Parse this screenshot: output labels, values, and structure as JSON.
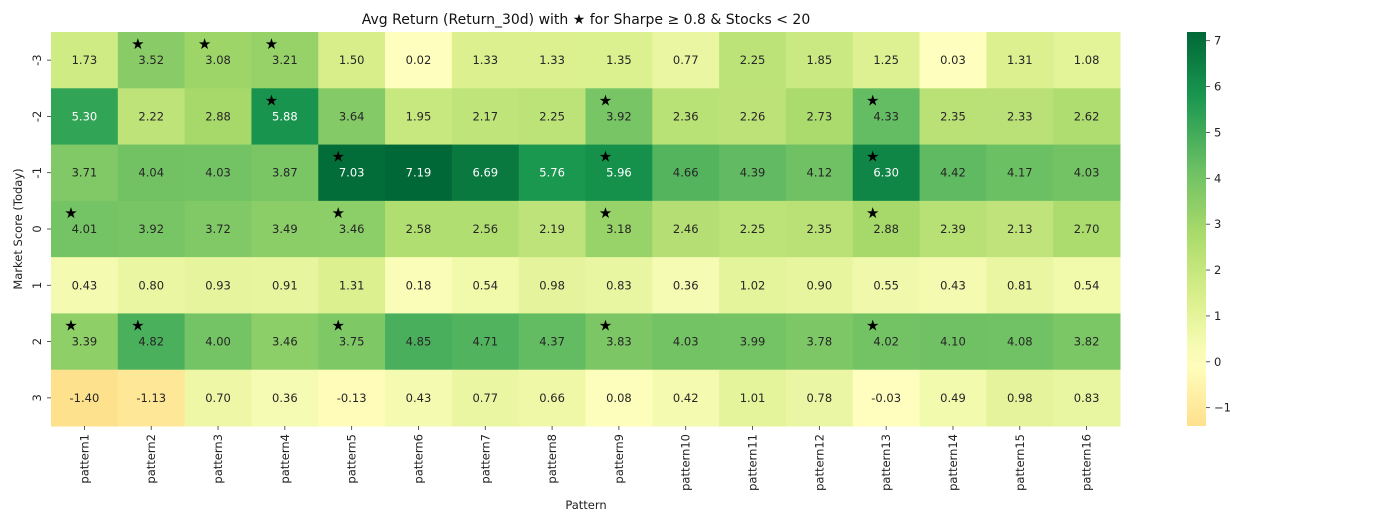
{
  "chart_data": {
    "type": "heatmap",
    "title": "Avg Return (Return_30d) with ★ for Sharpe ≥ 0.8 & Stocks < 20",
    "xlabel": "Pattern",
    "ylabel": "Market Score (Today)",
    "x_categories": [
      "pattern1",
      "pattern2",
      "pattern3",
      "pattern4",
      "pattern5",
      "pattern6",
      "pattern7",
      "pattern8",
      "pattern9",
      "pattern10",
      "pattern11",
      "pattern12",
      "pattern13",
      "pattern14",
      "pattern15",
      "pattern16"
    ],
    "y_categories": [
      "-3",
      "-2",
      "-1",
      "0",
      "1",
      "2",
      "3"
    ],
    "values": [
      [
        1.73,
        3.52,
        3.08,
        3.21,
        1.5,
        0.02,
        1.33,
        1.33,
        1.35,
        0.77,
        2.25,
        1.85,
        1.25,
        0.03,
        1.31,
        1.08
      ],
      [
        5.3,
        2.22,
        2.88,
        5.88,
        3.64,
        1.95,
        2.17,
        2.25,
        3.92,
        2.36,
        2.26,
        2.73,
        4.33,
        2.35,
        2.33,
        2.62
      ],
      [
        3.71,
        4.04,
        4.03,
        3.87,
        7.03,
        7.19,
        6.69,
        5.76,
        5.96,
        4.66,
        4.39,
        4.12,
        6.3,
        4.42,
        4.17,
        4.03
      ],
      [
        4.01,
        3.92,
        3.72,
        3.49,
        3.46,
        2.58,
        2.56,
        2.19,
        3.18,
        2.46,
        2.25,
        2.35,
        2.88,
        2.39,
        2.13,
        2.7
      ],
      [
        0.43,
        0.8,
        0.93,
        0.91,
        1.31,
        0.18,
        0.54,
        0.98,
        0.83,
        0.36,
        1.02,
        0.9,
        0.55,
        0.43,
        0.81,
        0.54
      ],
      [
        3.39,
        4.82,
        4.0,
        3.46,
        3.75,
        4.85,
        4.71,
        4.37,
        3.83,
        4.03,
        3.99,
        3.78,
        4.02,
        4.1,
        4.08,
        3.82
      ],
      [
        -1.4,
        -1.13,
        0.7,
        0.36,
        -0.13,
        0.43,
        0.77,
        0.66,
        0.08,
        0.42,
        1.01,
        0.78,
        -0.03,
        0.49,
        0.98,
        0.83
      ]
    ],
    "stars": [
      [
        false,
        true,
        true,
        true,
        false,
        false,
        false,
        false,
        false,
        false,
        false,
        false,
        false,
        false,
        false,
        false
      ],
      [
        false,
        false,
        false,
        true,
        false,
        false,
        false,
        false,
        true,
        false,
        false,
        false,
        true,
        false,
        false,
        false
      ],
      [
        false,
        false,
        false,
        false,
        true,
        false,
        false,
        false,
        true,
        false,
        false,
        false,
        true,
        false,
        false,
        false
      ],
      [
        true,
        false,
        false,
        false,
        true,
        false,
        false,
        false,
        true,
        false,
        false,
        false,
        true,
        false,
        false,
        false
      ],
      [
        false,
        false,
        false,
        false,
        false,
        false,
        false,
        false,
        false,
        false,
        false,
        false,
        false,
        false,
        false,
        false
      ],
      [
        true,
        true,
        false,
        false,
        true,
        false,
        false,
        false,
        true,
        false,
        false,
        false,
        true,
        false,
        false,
        false
      ],
      [
        false,
        false,
        false,
        false,
        false,
        false,
        false,
        false,
        false,
        false,
        false,
        false,
        false,
        false,
        false,
        false
      ]
    ],
    "star_symbol": "★",
    "value_format": "0.00",
    "colormap": "RdYlGn (centered at 0)",
    "color_range": [
      -1.4,
      7.19
    ],
    "colorbar": {
      "ticks": [
        -1,
        0,
        1,
        2,
        3,
        4,
        5,
        6,
        7
      ],
      "tick_labels": [
        "−1",
        "0",
        "1",
        "2",
        "3",
        "4",
        "5",
        "6",
        "7"
      ],
      "placement": "right"
    }
  }
}
